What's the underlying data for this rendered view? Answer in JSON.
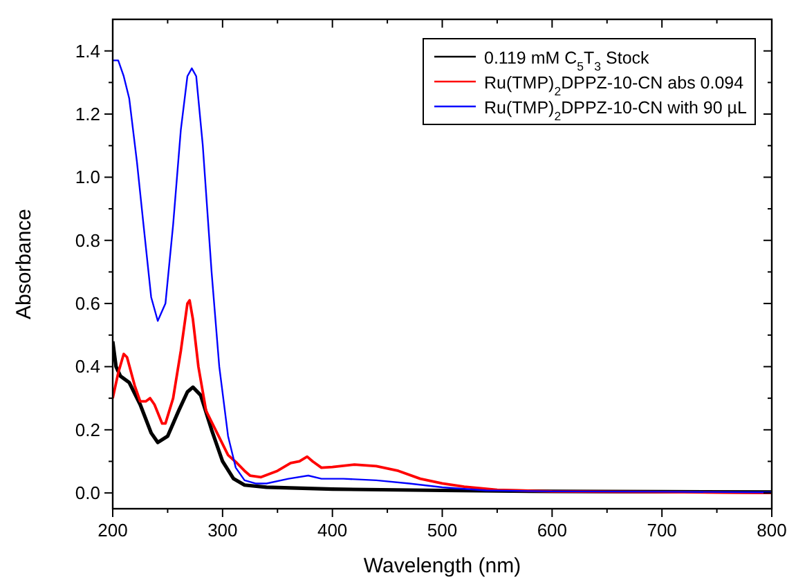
{
  "chart_data": {
    "type": "line",
    "xlabel": "Wavelength (nm)",
    "ylabel": "Absorbance",
    "xlim": [
      200,
      800
    ],
    "ylim": [
      -0.05,
      1.5
    ],
    "xticks": [
      200,
      {
        "value": 250,
        "label": null
      },
      300,
      {
        "value": 350,
        "label": null
      },
      400,
      {
        "value": 450,
        "label": null
      },
      500,
      {
        "value": 550,
        "label": null
      },
      600,
      {
        "value": 650,
        "label": null
      },
      700,
      {
        "value": 750,
        "label": null
      },
      800
    ],
    "yticks": [
      {
        "value": 0,
        "label": "0.0"
      },
      {
        "value": 0.1,
        "label": null
      },
      {
        "value": 0.2,
        "label": "0.2"
      },
      {
        "value": 0.3,
        "label": null
      },
      {
        "value": 0.4,
        "label": "0.4"
      },
      {
        "value": 0.5,
        "label": null
      },
      {
        "value": 0.6,
        "label": "0.6"
      },
      {
        "value": 0.7,
        "label": null
      },
      {
        "value": 0.8,
        "label": "0.8"
      },
      {
        "value": 0.9,
        "label": null
      },
      {
        "value": 1.0,
        "label": "1.0"
      },
      {
        "value": 1.1,
        "label": null
      },
      {
        "value": 1.2,
        "label": "1.2"
      },
      {
        "value": 1.3,
        "label": null
      },
      {
        "value": 1.4,
        "label": "1.4"
      }
    ],
    "legend": "top right",
    "series": [
      {
        "name": "0.119 mM C$_{5}$T$_{3}$ Stock",
        "color": "#000000",
        "x": [
          200,
          203,
          207,
          215,
          225,
          235,
          241,
          250,
          260,
          268,
          273,
          280,
          290,
          300,
          310,
          320,
          340,
          400,
          500,
          600,
          700,
          800
        ],
        "values": [
          0.48,
          0.4,
          0.37,
          0.35,
          0.28,
          0.19,
          0.16,
          0.18,
          0.26,
          0.32,
          0.335,
          0.31,
          0.2,
          0.1,
          0.045,
          0.025,
          0.018,
          0.012,
          0.008,
          0.005,
          0.004,
          0.003
        ]
      },
      {
        "name": "Ru(TMP)$_{2}$DPPZ-10-CN abs 0.094",
        "color": "#ff0000",
        "x": [
          200,
          205,
          210,
          213,
          220,
          225,
          230,
          234,
          238,
          245,
          248,
          255,
          262,
          268,
          270,
          273,
          278,
          285,
          295,
          305,
          313,
          320,
          325,
          335,
          350,
          362,
          370,
          377,
          382,
          390,
          400,
          420,
          440,
          460,
          480,
          500,
          520,
          550,
          600,
          700,
          800
        ],
        "values": [
          0.3,
          0.38,
          0.44,
          0.43,
          0.34,
          0.29,
          0.29,
          0.3,
          0.28,
          0.22,
          0.22,
          0.3,
          0.45,
          0.6,
          0.61,
          0.55,
          0.4,
          0.26,
          0.19,
          0.12,
          0.095,
          0.07,
          0.055,
          0.05,
          0.07,
          0.095,
          0.1,
          0.115,
          0.1,
          0.08,
          0.082,
          0.09,
          0.085,
          0.07,
          0.045,
          0.03,
          0.02,
          0.01,
          0.005,
          0.003,
          0.0
        ]
      },
      {
        "name": "Ru(TMP)$_{2}$DPPZ-10-CN with 90 µL",
        "color": "#0000ff",
        "x": [
          200,
          205,
          210,
          215,
          222,
          228,
          235,
          241,
          248,
          255,
          262,
          268,
          272,
          276,
          282,
          290,
          297,
          305,
          312,
          320,
          330,
          340,
          360,
          378,
          390,
          410,
          440,
          470,
          500,
          540,
          600,
          700,
          800
        ],
        "values": [
          1.37,
          1.37,
          1.32,
          1.25,
          1.05,
          0.85,
          0.62,
          0.545,
          0.6,
          0.85,
          1.15,
          1.32,
          1.345,
          1.32,
          1.1,
          0.7,
          0.4,
          0.18,
          0.08,
          0.04,
          0.03,
          0.03,
          0.045,
          0.055,
          0.045,
          0.045,
          0.04,
          0.03,
          0.018,
          0.008,
          0.005,
          0.004,
          0.002
        ]
      }
    ]
  }
}
